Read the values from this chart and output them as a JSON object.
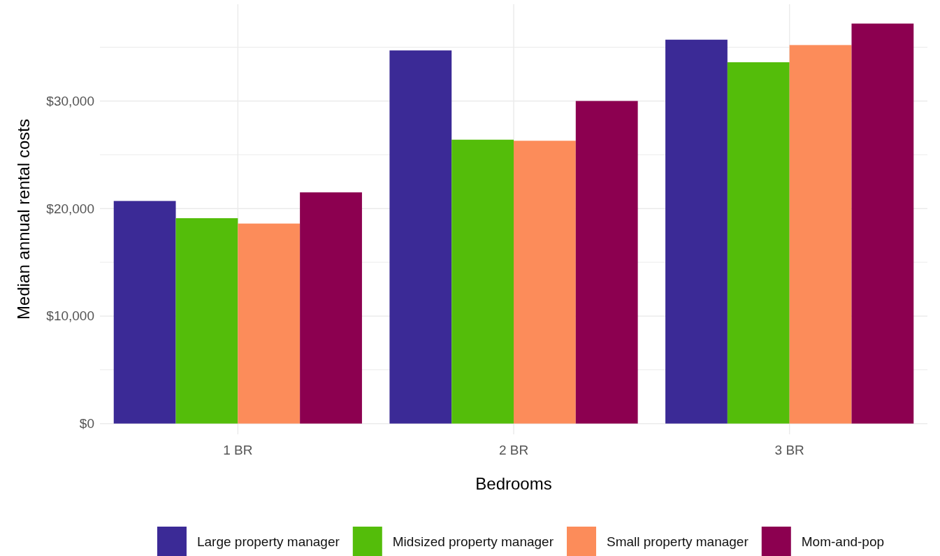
{
  "chart_data": {
    "type": "bar",
    "xlabel": "Bedrooms",
    "ylabel": "Median annual rental costs",
    "categories": [
      "1 BR",
      "2 BR",
      "3 BR"
    ],
    "series": [
      {
        "name": "Large property manager",
        "color": "#3b2a96",
        "values": [
          20700,
          34700,
          35700
        ]
      },
      {
        "name": "Midsized property manager",
        "color": "#54bd0a",
        "values": [
          19100,
          26400,
          33600
        ]
      },
      {
        "name": "Small property manager",
        "color": "#fc8c5a",
        "values": [
          18600,
          26300,
          35200
        ]
      },
      {
        "name": "Mom-and-pop",
        "color": "#8c0050",
        "values": [
          21500,
          30000,
          37200
        ]
      }
    ],
    "ylim": [
      -1000,
      39000
    ],
    "yticks": [
      {
        "value": 0,
        "label": "$0"
      },
      {
        "value": 5000,
        "label": null
      },
      {
        "value": 10000,
        "label": "$10,000"
      },
      {
        "value": 15000,
        "label": null
      },
      {
        "value": 20000,
        "label": "$20,000"
      },
      {
        "value": 25000,
        "label": null
      },
      {
        "value": 30000,
        "label": "$30,000"
      },
      {
        "value": 35000,
        "label": null
      }
    ],
    "grid": true,
    "legend": "bottom"
  }
}
